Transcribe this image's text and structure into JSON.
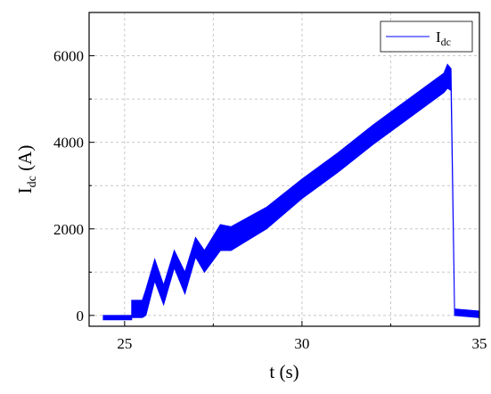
{
  "chart_data": {
    "type": "band",
    "xlabel": "t (s)",
    "ylabel": [
      "I",
      "dc",
      " (A)"
    ],
    "x": [
      24.4,
      25.2,
      25.2,
      25.5,
      25.6,
      25.85,
      26.1,
      26.4,
      26.7,
      27.0,
      27.25,
      27.7,
      28.0,
      29,
      30,
      31,
      32,
      33,
      34,
      34.1,
      34.2,
      34.3,
      35
    ],
    "series": [
      {
        "name": [
          "I",
          "dc"
        ],
        "color": "#0000ff",
        "lower": [
          -100,
          -100,
          -50,
          -50,
          0,
          800,
          250,
          1100,
          500,
          1350,
          1000,
          1500,
          1500,
          2000,
          2700,
          3300,
          3950,
          4550,
          5150,
          5250,
          5200,
          0,
          -50
        ],
        "upper": [
          0,
          0,
          350,
          350,
          600,
          1300,
          700,
          1500,
          1000,
          1800,
          1500,
          2100,
          2050,
          2500,
          3150,
          3750,
          4400,
          5000,
          5600,
          5800,
          5700,
          150,
          100
        ]
      }
    ],
    "xlim": [
      24,
      35
    ],
    "ylim": [
      -250,
      7000
    ],
    "xticks": [
      25,
      30,
      35
    ],
    "yticks": [
      0,
      2000,
      4000,
      6000
    ],
    "minor_xticks": [
      27.5,
      32.5
    ],
    "minor_yticks": [
      1000,
      3000,
      5000
    ],
    "grid": true,
    "legend": "top-right"
  }
}
